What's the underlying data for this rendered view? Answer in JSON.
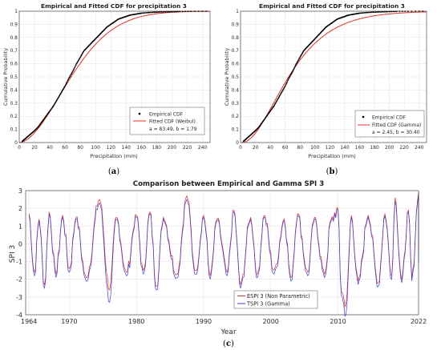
{
  "panels": {
    "a": {
      "caption_open": "(",
      "caption_letter": "a",
      "caption_close": ")"
    },
    "b": {
      "caption_open": "(",
      "caption_letter": "b",
      "caption_close": ")"
    },
    "c": {
      "caption_open": "(",
      "caption_letter": "c",
      "caption_close": ")"
    }
  },
  "chart_data": [
    {
      "id": "a",
      "type": "line",
      "title": "Empirical and Fitted CDF for precipitation 3",
      "xlabel": "Precipitation (mm)",
      "ylabel": "Cumulative Probability",
      "xlim": [
        0,
        250
      ],
      "ylim": [
        0,
        1
      ],
      "xticks": [
        0,
        20,
        40,
        60,
        80,
        100,
        120,
        140,
        160,
        180,
        200,
        220,
        240
      ],
      "yticks": [
        0,
        0.1,
        0.2,
        0.3,
        0.4,
        0.5,
        0.6,
        0.7,
        0.8,
        0.9,
        1
      ],
      "grid": true,
      "legend_position": "bottom-right",
      "fit": {
        "dist": "weibull",
        "a": 83.49,
        "b": 1.79
      },
      "series": [
        {
          "name": "Empirical CDF",
          "style": "points",
          "color": "#000000",
          "x": [
            4,
            8,
            12,
            16,
            20,
            25,
            30,
            35,
            40,
            45,
            50,
            55,
            60,
            65,
            70,
            75,
            80,
            85,
            90,
            95,
            100,
            105,
            110,
            115,
            120,
            125,
            130,
            135,
            140,
            145,
            150,
            155,
            160,
            170,
            180,
            190,
            200,
            210,
            225,
            245
          ],
          "y": [
            0.01,
            0.03,
            0.05,
            0.07,
            0.09,
            0.12,
            0.16,
            0.2,
            0.24,
            0.28,
            0.33,
            0.38,
            0.43,
            0.49,
            0.54,
            0.6,
            0.65,
            0.7,
            0.73,
            0.76,
            0.79,
            0.82,
            0.85,
            0.88,
            0.9,
            0.92,
            0.94,
            0.95,
            0.96,
            0.97,
            0.975,
            0.98,
            0.985,
            0.99,
            0.993,
            0.995,
            0.997,
            0.998,
            0.999,
            1
          ]
        },
        {
          "name": "Fitted CDF (Weibul)",
          "style": "line",
          "color": "#e0302a"
        }
      ],
      "legend_extra": "a = 83.49, b = 1.79"
    },
    {
      "id": "b",
      "type": "line",
      "title": "Empirical and Fitted CDF for precipitation 3",
      "xlabel": "Precipitation (mm)",
      "ylabel": "Cumulative Probability",
      "xlim": [
        0,
        250
      ],
      "ylim": [
        0,
        1
      ],
      "xticks": [
        0,
        20,
        40,
        60,
        80,
        100,
        120,
        140,
        160,
        180,
        200,
        220,
        240
      ],
      "yticks": [
        0,
        0.1,
        0.2,
        0.3,
        0.4,
        0.5,
        0.6,
        0.7,
        0.8,
        0.9,
        1
      ],
      "grid": true,
      "legend_position": "bottom-right",
      "fit": {
        "dist": "gamma",
        "a": 2.45,
        "b": 30.4
      },
      "series": [
        {
          "name": "Empirical CDF",
          "style": "points",
          "color": "#000000",
          "x": [
            4,
            8,
            12,
            16,
            20,
            25,
            30,
            35,
            40,
            45,
            50,
            55,
            60,
            65,
            70,
            75,
            80,
            85,
            90,
            95,
            100,
            105,
            110,
            115,
            120,
            125,
            130,
            135,
            140,
            145,
            150,
            155,
            160,
            170,
            180,
            190,
            200,
            210,
            225,
            245
          ],
          "y": [
            0.01,
            0.03,
            0.05,
            0.07,
            0.09,
            0.12,
            0.16,
            0.2,
            0.24,
            0.28,
            0.33,
            0.38,
            0.43,
            0.49,
            0.54,
            0.6,
            0.65,
            0.7,
            0.73,
            0.76,
            0.79,
            0.82,
            0.85,
            0.88,
            0.9,
            0.92,
            0.94,
            0.95,
            0.96,
            0.97,
            0.975,
            0.98,
            0.985,
            0.99,
            0.993,
            0.995,
            0.997,
            0.998,
            0.999,
            1
          ]
        },
        {
          "name": "Fitted CDF (Gamma)",
          "style": "line",
          "color": "#e0302a"
        }
      ],
      "legend_extra": "a = 2.45, b = 30.40"
    },
    {
      "id": "c",
      "type": "line",
      "title": "Comparison between Empirical and Gamma SPI 3",
      "xlabel": "Year",
      "ylabel": "SPI 3",
      "xlim": [
        1963.5,
        2022
      ],
      "ylim": [
        -4,
        3
      ],
      "xticks": [
        1964,
        1970,
        1980,
        1990,
        2000,
        2010,
        2022
      ],
      "yticks": [
        -4,
        -3,
        -2,
        -1,
        0,
        1,
        2,
        3
      ],
      "grid": true,
      "legend_position": "bottom-center",
      "series": [
        {
          "name": "ESPI 3 (Non Parametric)",
          "color": "#e0302a",
          "peaks_x": [
            1964,
            1965.5,
            1967,
            1969,
            1971,
            1974.5,
            1977,
            1980,
            1982,
            1984,
            1987.5,
            1990,
            1992,
            1994.5,
            1997,
            1999,
            2002,
            2004,
            2006.5,
            2009,
            2010,
            2012,
            2014.5,
            2017,
            2018.5,
            2020.5,
            2022
          ],
          "peaks_y": [
            1.7,
            1.4,
            1.8,
            1.6,
            1.5,
            2.5,
            1.5,
            1.6,
            1.8,
            1.5,
            2.7,
            1.6,
            1.4,
            1.9,
            1.5,
            1.6,
            1.4,
            1.7,
            1.5,
            1.4,
            2.0,
            1.6,
            1.6,
            1.7,
            2.6,
            1.9,
            2.9
          ],
          "troughs_x": [
            1964.8,
            1966.3,
            1968,
            1970,
            1972.5,
            1976,
            1978.5,
            1981,
            1983,
            1986,
            1988.8,
            1991,
            1993.5,
            1995.5,
            1998,
            2000.5,
            2003,
            2005.5,
            2008,
            2010.5,
            2011.2,
            2013,
            2016,
            2018,
            2019.5,
            2021,
            2022
          ],
          "troughs_y": [
            -1.6,
            -2.3,
            -1.7,
            -1.4,
            -1.9,
            -2.6,
            -1.6,
            -1.5,
            -2.4,
            -1.7,
            -1.5,
            -1.8,
            -1.6,
            -2.3,
            -1.7,
            -1.5,
            -1.9,
            -1.6,
            -1.7,
            -2.7,
            -3.4,
            -2.1,
            -2.2,
            -1.8,
            -2.0,
            -1.9,
            -1.4
          ]
        },
        {
          "name": "TSPI 3 (Gamma)",
          "color": "#3d3fd1",
          "peaks_x": [
            1964,
            1965.5,
            1967,
            1969,
            1971,
            1974.5,
            1977,
            1980,
            1982,
            1984,
            1987.5,
            1990,
            1992,
            1994.5,
            1997,
            1999,
            2002,
            2004,
            2006.5,
            2009,
            2010,
            2012,
            2014.5,
            2017,
            2018.5,
            2020.5,
            2022
          ],
          "peaks_y": [
            1.6,
            1.3,
            1.7,
            1.5,
            1.4,
            2.3,
            1.4,
            1.5,
            1.7,
            1.4,
            2.5,
            1.5,
            1.3,
            1.8,
            1.4,
            1.5,
            1.3,
            1.6,
            1.4,
            1.3,
            1.9,
            1.5,
            1.5,
            1.6,
            2.4,
            1.8,
            2.8
          ],
          "troughs_x": [
            1964.8,
            1966.3,
            1968,
            1970,
            1972.5,
            1976,
            1978.5,
            1981,
            1983,
            1986,
            1988.8,
            1991,
            1993.5,
            1995.5,
            1998,
            2000.5,
            2003,
            2005.5,
            2008,
            2010.5,
            2011.2,
            2013,
            2016,
            2018,
            2019.5,
            2021,
            2022
          ],
          "troughs_y": [
            -1.8,
            -2.5,
            -1.9,
            -1.6,
            -2.1,
            -3.3,
            -1.8,
            -1.7,
            -2.6,
            -1.9,
            -1.7,
            -2.0,
            -1.8,
            -2.5,
            -1.9,
            -1.7,
            -2.1,
            -1.8,
            -1.9,
            -2.9,
            -4.0,
            -2.3,
            -2.4,
            -2.0,
            -2.2,
            -2.1,
            -2.2
          ]
        }
      ]
    }
  ]
}
